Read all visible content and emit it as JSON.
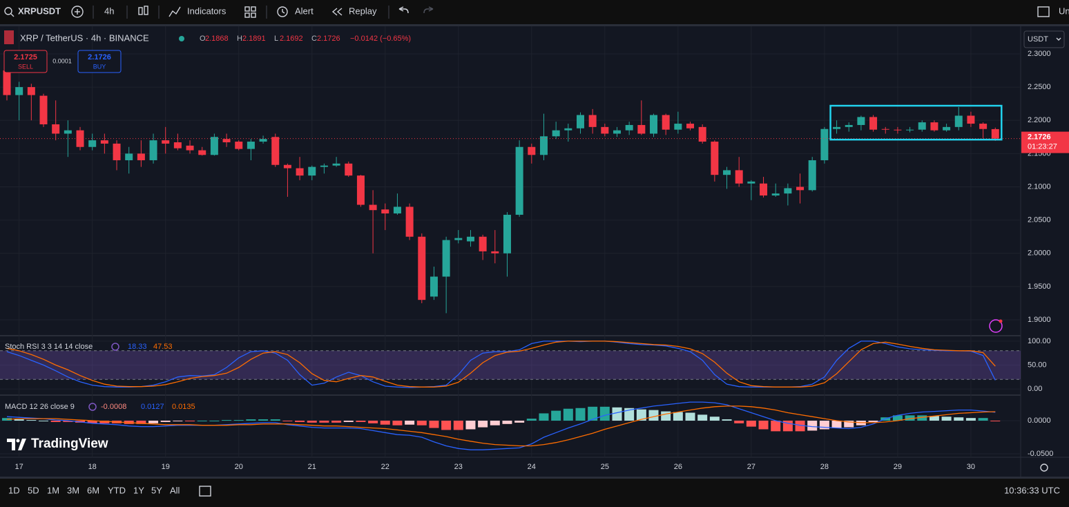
{
  "toolbar": {
    "symbol": "XRPUSDT",
    "interval": "4h",
    "indicators": "Indicators",
    "alert": "Alert",
    "replay": "Replay",
    "cut": "Un"
  },
  "legend": {
    "title": "XRP / TetherUS · 4h · BINANCE",
    "o": "O",
    "h": "H",
    "l": "L",
    "c": "C",
    "change": "−0.0142 (−0.65%)"
  },
  "trade": {
    "sell_price": "2.1725",
    "sell": "SELL",
    "spread": "0.0001",
    "buy_price": "2.1726",
    "buy": "BUY"
  },
  "currency": "USDT",
  "countdown": "01:23:27",
  "logo": "TradingView",
  "ranges": [
    "1D",
    "5D",
    "1M",
    "3M",
    "6M",
    "YTD",
    "1Y",
    "5Y",
    "All"
  ],
  "clock": "10:36:33 UTC",
  "chart_data": {
    "type": "candlestick",
    "up_color": "#26a69a",
    "down_color": "#f23645",
    "open": [
      2.275,
      2.238,
      2.25,
      2.237,
      2.194,
      2.18,
      2.185,
      2.16,
      2.17,
      2.165,
      2.14,
      2.15,
      2.14,
      2.17,
      2.167,
      2.162,
      2.155,
      2.148,
      2.172,
      2.168,
      2.157,
      2.168,
      2.175,
      2.133,
      2.128,
      2.117,
      2.13,
      2.132,
      2.135,
      2.117,
      2.073,
      2.066,
      2.06,
      2.07,
      2.025,
      1.935,
      1.965,
      2.02,
      2.018,
      2.025,
      2.003,
      2.0,
      2.058,
      2.16,
      2.148,
      2.176,
      2.185,
      2.188,
      2.208,
      2.19,
      2.18,
      2.185,
      2.193,
      2.18,
      2.208,
      2.186,
      2.195,
      2.19,
      2.168,
      2.118,
      2.125,
      2.105,
      2.105,
      2.087,
      2.09,
      2.1,
      2.095,
      2.14,
      2.187,
      2.19,
      2.193,
      2.205,
      2.187,
      2.186,
      2.185,
      2.186,
      2.197,
      2.185,
      2.19,
      2.207,
      2.195,
      2.1868
    ],
    "high": [
      2.28,
      2.258,
      2.255,
      2.24,
      2.23,
      2.2,
      2.19,
      2.18,
      2.18,
      2.17,
      2.16,
      2.17,
      2.18,
      2.19,
      2.18,
      2.17,
      2.16,
      2.18,
      2.18,
      2.17,
      2.172,
      2.177,
      2.18,
      2.135,
      2.145,
      2.132,
      2.135,
      2.145,
      2.138,
      2.118,
      2.095,
      2.075,
      2.09,
      2.075,
      2.03,
      1.98,
      2.025,
      2.035,
      2.035,
      2.028,
      2.035,
      2.062,
      2.17,
      2.165,
      2.21,
      2.198,
      2.195,
      2.212,
      2.217,
      2.195,
      2.19,
      2.198,
      2.23,
      2.21,
      2.21,
      2.213,
      2.198,
      2.194,
      2.17,
      2.13,
      2.145,
      2.11,
      2.115,
      2.105,
      2.105,
      2.12,
      2.145,
      2.19,
      2.2,
      2.197,
      2.207,
      2.208,
      2.19,
      2.19,
      2.19,
      2.2,
      2.2,
      2.195,
      2.22,
      2.213,
      2.197,
      2.1891
    ],
    "low": [
      2.23,
      2.2,
      2.2,
      2.19,
      2.17,
      2.145,
      2.155,
      2.155,
      2.15,
      2.125,
      2.12,
      2.13,
      2.135,
      2.15,
      2.155,
      2.15,
      2.147,
      2.147,
      2.16,
      2.155,
      2.14,
      2.165,
      2.13,
      2.085,
      2.11,
      2.11,
      2.12,
      2.13,
      2.115,
      2.07,
      2.0,
      2.035,
      2.058,
      2.02,
      1.925,
      1.93,
      1.91,
      2.015,
      2.01,
      1.99,
      1.985,
      1.965,
      2.055,
      2.135,
      2.14,
      2.172,
      2.168,
      2.18,
      2.18,
      2.176,
      2.175,
      2.178,
      2.178,
      2.175,
      2.178,
      2.18,
      2.185,
      2.165,
      2.108,
      2.097,
      2.1,
      2.08,
      2.084,
      2.085,
      2.072,
      2.075,
      2.093,
      2.135,
      2.18,
      2.183,
      2.185,
      2.183,
      2.18,
      2.18,
      2.182,
      2.183,
      2.183,
      2.183,
      2.185,
      2.19,
      2.173,
      2.1692
    ],
    "close": [
      2.238,
      2.25,
      2.238,
      2.194,
      2.18,
      2.185,
      2.16,
      2.17,
      2.165,
      2.14,
      2.15,
      2.14,
      2.17,
      2.165,
      2.158,
      2.155,
      2.148,
      2.175,
      2.167,
      2.157,
      2.168,
      2.172,
      2.133,
      2.128,
      2.117,
      2.13,
      2.132,
      2.135,
      2.117,
      2.073,
      2.065,
      2.06,
      2.07,
      2.025,
      1.93,
      1.965,
      2.02,
      2.023,
      2.025,
      2.003,
      2.0,
      2.058,
      2.16,
      2.148,
      2.176,
      2.185,
      2.188,
      2.208,
      2.19,
      2.18,
      2.185,
      2.193,
      2.18,
      2.208,
      2.186,
      2.195,
      2.188,
      2.168,
      2.118,
      2.125,
      2.105,
      2.108,
      2.087,
      2.09,
      2.098,
      2.095,
      2.14,
      2.187,
      2.19,
      2.193,
      2.205,
      2.186,
      2.186,
      2.185,
      2.186,
      2.197,
      2.185,
      2.19,
      2.207,
      2.195,
      2.187,
      2.1726
    ],
    "ylim": [
      1.8772,
      2.3415
    ],
    "yticks": [
      {
        "value": 2.3,
        "label": "2.3000"
      },
      {
        "value": 2.25,
        "label": "2.2500"
      },
      {
        "value": 2.2,
        "label": "2.2000"
      },
      {
        "value": 2.15,
        "label": "2.1500"
      },
      {
        "value": 2.1,
        "label": "2.1000"
      },
      {
        "value": 2.05,
        "label": "2.0500"
      },
      {
        "value": 2.0,
        "label": "2.0000"
      },
      {
        "value": 1.95,
        "label": "1.9500"
      },
      {
        "value": 1.9,
        "label": "1.9000"
      }
    ],
    "xticks": [
      {
        "value": 1,
        "label": "17"
      },
      {
        "value": 7,
        "label": "18"
      },
      {
        "value": 13,
        "label": "19"
      },
      {
        "value": 19,
        "label": "20"
      },
      {
        "value": 25,
        "label": "21"
      },
      {
        "value": 31,
        "label": "22"
      },
      {
        "value": 37,
        "label": "23"
      },
      {
        "value": 43,
        "label": "24"
      },
      {
        "value": 49,
        "label": "25"
      },
      {
        "value": 55,
        "label": "26"
      },
      {
        "value": 61,
        "label": "27"
      },
      {
        "value": 67,
        "label": "28"
      },
      {
        "value": 73,
        "label": "29"
      },
      {
        "value": 79,
        "label": "30"
      }
    ],
    "grid": true,
    "highlight": {
      "from": 68,
      "to": 81,
      "top": 2.222,
      "bottom": 2.171,
      "color": "#22d3ee"
    }
  },
  "rsi": {
    "type": "line",
    "label": "Stoch RSI 3 3 14 14 close",
    "ylim": [
      -11.4,
      110
    ],
    "yticks": [
      {
        "value": 100,
        "label": "100.00"
      },
      {
        "value": 50,
        "label": "50.00"
      },
      {
        "value": 0,
        "label": "0.00"
      }
    ],
    "bands": [
      20,
      80
    ],
    "band_color": "#7e57c2",
    "series": [
      {
        "color": "#2962ff",
        "values": [
          78,
          70,
          60,
          50,
          38,
          25,
          15,
          8,
          5,
          4,
          4,
          5,
          8,
          15,
          25,
          28,
          27,
          30,
          45,
          65,
          78,
          80,
          75,
          60,
          30,
          8,
          12,
          25,
          35,
          28,
          15,
          6,
          4,
          3,
          4,
          5,
          8,
          30,
          60,
          75,
          78,
          78,
          82,
          95,
          100,
          100,
          100,
          99,
          100,
          100,
          98,
          95,
          93,
          92,
          90,
          85,
          78,
          60,
          30,
          10,
          5,
          4,
          4,
          4,
          4,
          5,
          10,
          25,
          60,
          85,
          100,
          100,
          95,
          88,
          84,
          82,
          81,
          80,
          80,
          79,
          70,
          18.33
        ]
      },
      {
        "color": "#ff6d00",
        "values": [
          85,
          80,
          72,
          62,
          50,
          40,
          28,
          18,
          10,
          6,
          5,
          5,
          6,
          9,
          15,
          22,
          26,
          28,
          33,
          45,
          62,
          75,
          78,
          72,
          55,
          32,
          18,
          15,
          22,
          28,
          25,
          16,
          8,
          5,
          4,
          4,
          6,
          14,
          33,
          55,
          70,
          77,
          79,
          85,
          92,
          98,
          100,
          100,
          100,
          100,
          99,
          97,
          95,
          93,
          92,
          89,
          84,
          74,
          56,
          33,
          15,
          7,
          5,
          4,
          4,
          4,
          6,
          13,
          32,
          57,
          82,
          95,
          98,
          94,
          89,
          85,
          82,
          81,
          80,
          80,
          76,
          47.53
        ]
      }
    ]
  },
  "macd": {
    "type": "histogram-line",
    "label": "MACD 12 26 close 9",
    "ylim": [
      -0.0552,
      0.0375
    ],
    "yticks": [
      {
        "value": 0,
        "label": "0.0000"
      },
      {
        "value": -0.05,
        "label": "-0.0500"
      }
    ],
    "histogram": {
      "colors": [
        "#26a69a",
        "#b2dfdb",
        "#ff5252",
        "#ffcdd2"
      ],
      "values": [
        0.004,
        0.002,
        0.001,
        0,
        -0.002,
        -0.002,
        -0.003,
        -0.004,
        -0.004,
        -0.004,
        -0.005,
        -0.005,
        -0.004,
        -0.002,
        -0.001,
        -0.001,
        0,
        0,
        0.001,
        0.001,
        0.002,
        0.002,
        0.002,
        -0.001,
        -0.002,
        -0.003,
        -0.003,
        -0.003,
        -0.002,
        -0.002,
        -0.004,
        -0.006,
        -0.007,
        -0.006,
        -0.007,
        -0.011,
        -0.014,
        -0.014,
        -0.013,
        -0.01,
        -0.007,
        -0.005,
        -0.003,
        0.003,
        0.011,
        0.015,
        0.018,
        0.019,
        0.021,
        0.021,
        0.02,
        0.019,
        0.017,
        0.016,
        0.014,
        0.013,
        0.012,
        0.009,
        0.006,
        0.002,
        -0.004,
        -0.009,
        -0.013,
        -0.016,
        -0.016,
        -0.016,
        -0.015,
        -0.013,
        -0.011,
        -0.01,
        -0.007,
        -0.002,
        0.005,
        0.008,
        0.008,
        0.008,
        0.007,
        0.006,
        0.005,
        0.004,
        0.004,
        -0.0008
      ]
    },
    "series": [
      {
        "color": "#2962ff",
        "values": [
          0.006,
          0.005,
          0.004,
          0.003,
          0.001,
          0.0,
          -0.002,
          -0.004,
          -0.005,
          -0.006,
          -0.008,
          -0.009,
          -0.009,
          -0.008,
          -0.007,
          -0.007,
          -0.007,
          -0.007,
          -0.006,
          -0.005,
          -0.004,
          -0.003,
          -0.003,
          -0.006,
          -0.008,
          -0.01,
          -0.011,
          -0.011,
          -0.011,
          -0.012,
          -0.015,
          -0.018,
          -0.021,
          -0.022,
          -0.025,
          -0.032,
          -0.038,
          -0.042,
          -0.044,
          -0.044,
          -0.043,
          -0.042,
          -0.041,
          -0.035,
          -0.025,
          -0.018,
          -0.011,
          -0.005,
          0.002,
          0.008,
          0.012,
          0.016,
          0.019,
          0.022,
          0.024,
          0.026,
          0.028,
          0.028,
          0.027,
          0.024,
          0.018,
          0.012,
          0.006,
          0.0,
          -0.004,
          -0.007,
          -0.009,
          -0.01,
          -0.011,
          -0.012,
          -0.01,
          -0.005,
          0.003,
          0.008,
          0.011,
          0.013,
          0.014,
          0.015,
          0.016,
          0.016,
          0.0145,
          0.0127
        ]
      },
      {
        "color": "#ff6d00",
        "values": [
          0.002,
          0.003,
          0.003,
          0.003,
          0.003,
          0.002,
          0.001,
          0.0,
          -0.001,
          -0.002,
          -0.003,
          -0.004,
          -0.005,
          -0.006,
          -0.006,
          -0.006,
          -0.007,
          -0.007,
          -0.007,
          -0.006,
          -0.006,
          -0.005,
          -0.005,
          -0.005,
          -0.006,
          -0.007,
          -0.008,
          -0.008,
          -0.009,
          -0.01,
          -0.011,
          -0.012,
          -0.014,
          -0.016,
          -0.018,
          -0.021,
          -0.024,
          -0.028,
          -0.031,
          -0.034,
          -0.036,
          -0.037,
          -0.038,
          -0.038,
          -0.036,
          -0.033,
          -0.029,
          -0.024,
          -0.019,
          -0.013,
          -0.008,
          -0.003,
          0.002,
          0.006,
          0.01,
          0.013,
          0.016,
          0.019,
          0.021,
          0.022,
          0.022,
          0.021,
          0.019,
          0.016,
          0.012,
          0.009,
          0.006,
          0.003,
          0.0,
          -0.002,
          -0.003,
          -0.003,
          -0.002,
          0.0,
          0.003,
          0.005,
          0.007,
          0.009,
          0.011,
          0.012,
          0.013,
          0.0135
        ]
      }
    ]
  }
}
